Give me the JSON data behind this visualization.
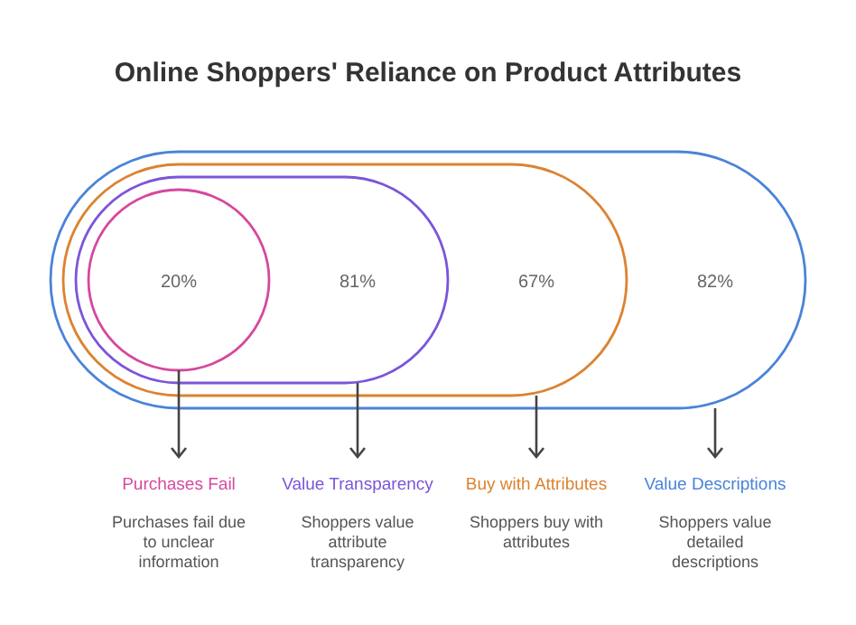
{
  "chart_data": {
    "type": "other",
    "title": "Online Shoppers' Reliance on Product Attributes",
    "categories": [
      "Purchases Fail",
      "Value Transparency",
      "Buy with Attributes",
      "Value Descriptions"
    ],
    "values": [
      20,
      81,
      67,
      82
    ],
    "value_labels": [
      "20%",
      "81%",
      "67%",
      "82%"
    ],
    "colors": [
      "#d6489e",
      "#7b55d9",
      "#dc8331",
      "#4a83d8"
    ],
    "annotations": [
      "Purchases fail due to unclear information",
      "Shoppers value attribute transparency",
      "Shoppers buy with attributes",
      "Shoppers value detailed descriptions"
    ]
  }
}
